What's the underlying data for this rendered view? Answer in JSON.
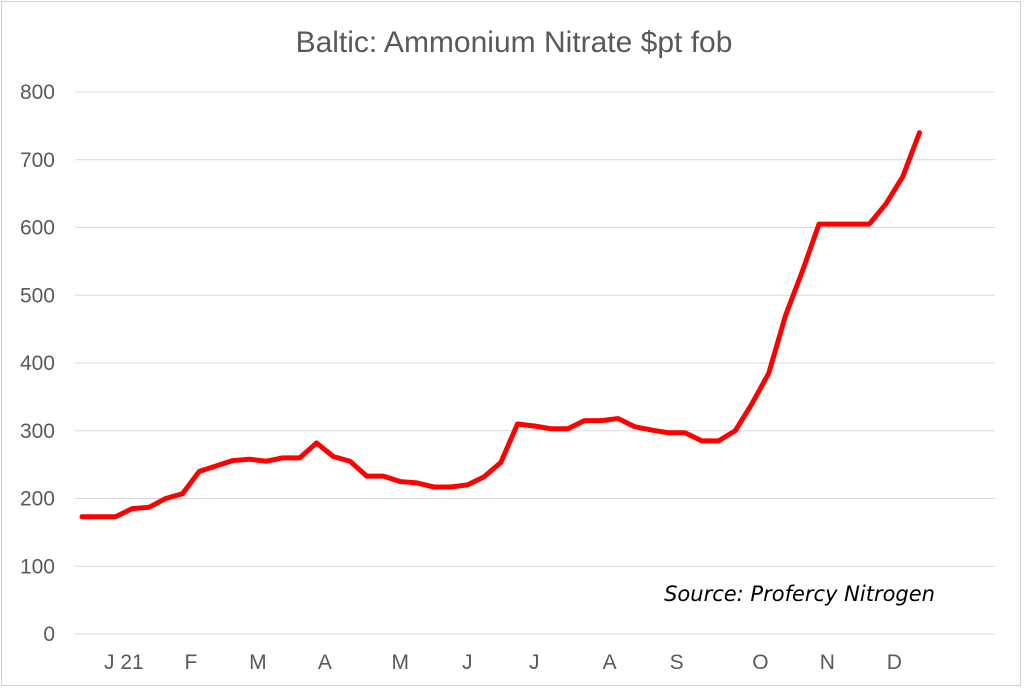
{
  "chart_data": {
    "type": "line",
    "title": "Baltic: Ammonium Nitrate $pt fob",
    "xlabel": "",
    "ylabel": "",
    "ylim": [
      0,
      800
    ],
    "yticks": [
      0,
      100,
      200,
      300,
      400,
      500,
      600,
      700,
      800
    ],
    "grid": true,
    "legend": "none",
    "annotation": "Source: Profercy Nitrogen",
    "line_color": "#ff0000",
    "x_ticks": [
      {
        "label": "J 21",
        "index": 2.5
      },
      {
        "label": "F",
        "index": 6.5
      },
      {
        "label": "M",
        "index": 10.5
      },
      {
        "label": "A",
        "index": 14.5
      },
      {
        "label": "M",
        "index": 19
      },
      {
        "label": "J",
        "index": 23
      },
      {
        "label": "J",
        "index": 27
      },
      {
        "label": "A",
        "index": 31.5
      },
      {
        "label": "S",
        "index": 35.5
      },
      {
        "label": "O",
        "index": 40.5
      },
      {
        "label": "N",
        "index": 44.5
      },
      {
        "label": "D",
        "index": 48.5
      }
    ],
    "series": [
      {
        "values": [
          173,
          173,
          173,
          185,
          187,
          200,
          207,
          240,
          248,
          256,
          258,
          255,
          260,
          260,
          282,
          262,
          255,
          233,
          233,
          225,
          223,
          217,
          217,
          220,
          232,
          253,
          310,
          307,
          303,
          303,
          315,
          315,
          318,
          306,
          301,
          297,
          297,
          285,
          285,
          300,
          340,
          385,
          470,
          535,
          605,
          605,
          605,
          605,
          635,
          675,
          740
        ]
      }
    ]
  }
}
